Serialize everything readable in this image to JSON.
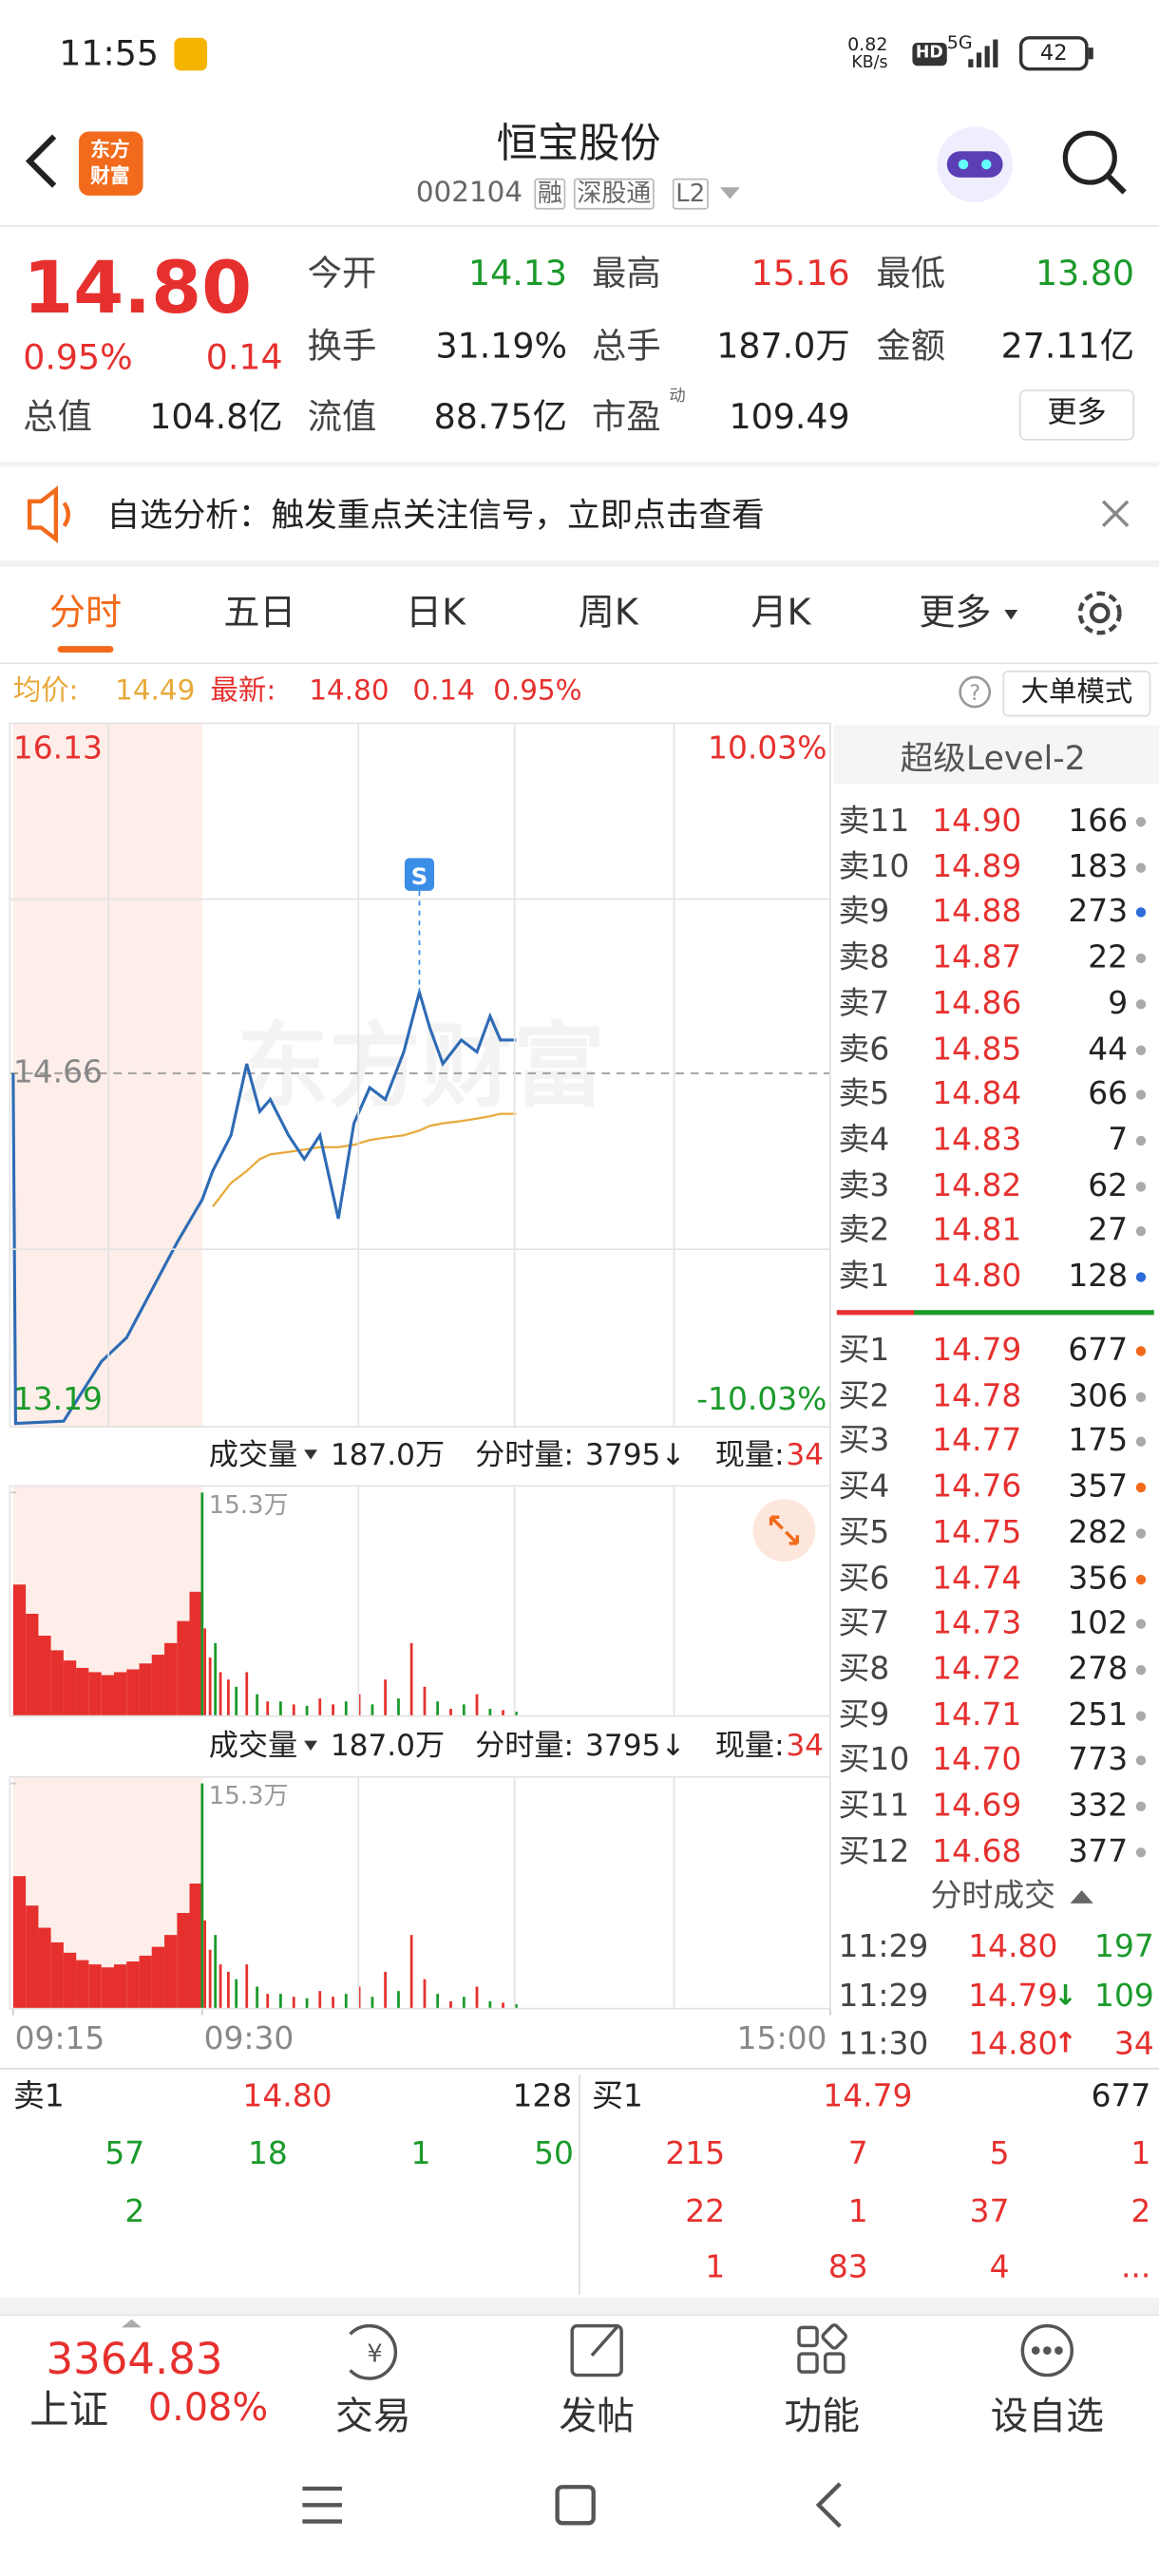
{
  "status": {
    "time": "11:55",
    "speed": "0.82",
    "speed_unit": "KB/s",
    "hd": "HD",
    "net": "5G",
    "battery": "42"
  },
  "header": {
    "logo_top": "东方",
    "logo_bottom": "财富",
    "title": "恒宝股份",
    "code": "002104",
    "tags": [
      "融",
      "深股通",
      "L2"
    ]
  },
  "quote": {
    "price": "14.80",
    "pct": "0.95%",
    "change": "0.14",
    "fields": [
      {
        "label": "今开",
        "value": "14.13",
        "color": "#1a9a2a"
      },
      {
        "label": "最高",
        "value": "15.16",
        "color": "#e6302e"
      },
      {
        "label": "最低",
        "value": "13.80",
        "color": "#1a9a2a"
      },
      {
        "label": "换手",
        "value": "31.19%",
        "color": "#222"
      },
      {
        "label": "总手",
        "value": "187.0万",
        "color": "#222"
      },
      {
        "label": "金额",
        "value": "27.11亿",
        "color": "#222"
      },
      {
        "label": "总值",
        "value": "104.8亿",
        "color": "#222"
      },
      {
        "label": "流值",
        "value": "88.75亿",
        "color": "#222"
      },
      {
        "label": "市盈",
        "value": "109.49",
        "color": "#222"
      }
    ],
    "pe_mark": "动",
    "more": "更多"
  },
  "banner": {
    "text": "自选分析：触发重点关注信号，立即点击查看"
  },
  "tabs": [
    "分时",
    "五日",
    "日K",
    "周K",
    "月K",
    "更多"
  ],
  "info": {
    "avg_label": "均价:",
    "avg": "14.49",
    "last_label": "最新:",
    "last": "14.80",
    "change": "0.14",
    "pct": "0.95%",
    "mode": "大单模式"
  },
  "chart_data": [
    {
      "type": "line",
      "x": [
        0,
        0.2,
        4,
        7,
        9,
        11,
        13,
        15,
        19,
        26,
        32,
        37,
        41,
        48,
        54,
        60,
        67,
        73,
        79,
        85,
        92,
        98,
        102,
        107,
        114,
        120,
        125,
        129,
        135
      ],
      "xlim": [
        0,
        255
      ],
      "series": [
        {
          "color": "#2e6bb5",
          "values": [
            14.66,
            13.19,
            13.2,
            13.45,
            13.55,
            13.75,
            13.95,
            14.13,
            14.25,
            14.4,
            14.7,
            14.5,
            14.55,
            14.4,
            14.3,
            14.4,
            14.05,
            14.45,
            14.6,
            14.55,
            14.75,
            15.0,
            14.85,
            14.7,
            14.8,
            14.75,
            14.9,
            14.8,
            14.8
          ]
        },
        {
          "color": "#e8a93a",
          "values": [
            null,
            null,
            null,
            null,
            null,
            null,
            null,
            null,
            14.1,
            14.2,
            14.25,
            14.3,
            14.32,
            14.33,
            14.34,
            14.35,
            14.35,
            14.36,
            14.38,
            14.39,
            14.4,
            14.42,
            14.44,
            14.45,
            14.46,
            14.47,
            14.48,
            14.49,
            14.49
          ]
        }
      ],
      "ylim": [
        13.19,
        16.13
      ],
      "yticks": [
        13.19,
        14.66,
        16.13
      ],
      "y2lim": [
        -10.03,
        10.03
      ],
      "y2ticks": [
        {
          "value": -10.03,
          "label": "-10.03%"
        },
        {
          "value": 10.03,
          "label": "10.03%"
        }
      ],
      "annotations": [
        {
          "text": "S",
          "x": 98
        }
      ],
      "watermark": "东方财富"
    },
    {
      "type": "bar",
      "label": "成交量",
      "total": "187.0万",
      "minute_label": "分时量:",
      "minute_value": "3795↓",
      "current_label": "现量:",
      "current_value": "34",
      "x": [
        0,
        1,
        2,
        3,
        4,
        5,
        6,
        7,
        8,
        9,
        10,
        11,
        12,
        13,
        14,
        15,
        16,
        18,
        20,
        22,
        25,
        28,
        32,
        36,
        40,
        45,
        50,
        55,
        60,
        65,
        70,
        75,
        80,
        85,
        90,
        95,
        100,
        105,
        110,
        115,
        120,
        125,
        130,
        135
      ],
      "values": [
        9,
        7,
        5.5,
        4.5,
        3.8,
        3.3,
        3,
        2.8,
        3,
        3.2,
        3.6,
        4.2,
        5,
        6.5,
        8.5,
        15.3,
        6,
        4,
        5,
        3,
        2.5,
        2,
        3,
        1.5,
        1,
        1,
        0.8,
        0.7,
        1.2,
        0.8,
        1,
        1.5,
        0.8,
        2.5,
        1.2,
        5,
        2,
        1,
        0.5,
        0.8,
        1.5,
        0.5,
        0.4,
        0.3
      ],
      "colors": [
        "#e6302e",
        "#e6302e",
        "#e6302e",
        "#e6302e",
        "#e6302e",
        "#e6302e",
        "#e6302e",
        "#e6302e",
        "#e6302e",
        "#e6302e",
        "#e6302e",
        "#e6302e",
        "#e6302e",
        "#e6302e",
        "#e6302e",
        "#1a9a2a",
        "#e6302e",
        "#e6302e",
        "#1a9a2a",
        "#e6302e",
        "#e6302e",
        "#1a9a2a",
        "#e6302e",
        "#1a9a2a",
        "#e6302e",
        "#1a9a2a",
        "#e6302e",
        "#1a9a2a",
        "#e6302e",
        "#e6302e",
        "#1a9a2a",
        "#e6302e",
        "#1a9a2a",
        "#e6302e",
        "#1a9a2a",
        "#e6302e",
        "#e6302e",
        "#1a9a2a",
        "#e6302e",
        "#1a9a2a",
        "#e6302e",
        "#1a9a2a",
        "#e6302e",
        "#1a9a2a"
      ],
      "xlim": [
        0,
        255
      ],
      "xticks": [
        {
          "value": 0,
          "label": "09:15"
        },
        {
          "value": 15,
          "label": "09:30"
        },
        {
          "value": 255,
          "label": "15:00"
        }
      ],
      "ylim": [
        0,
        15.3
      ],
      "yticks": [
        {
          "value": 15.3,
          "label": "15.3万"
        }
      ]
    }
  ],
  "level2": {
    "title": "超级Level-2",
    "asks": [
      {
        "label": "卖11",
        "price": "14.90",
        "volume": "166",
        "dot": "#aaa"
      },
      {
        "label": "卖10",
        "price": "14.89",
        "volume": "183",
        "dot": "#aaa"
      },
      {
        "label": "卖9",
        "price": "14.88",
        "volume": "273",
        "dot": "#2e6bd8"
      },
      {
        "label": "卖8",
        "price": "14.87",
        "volume": "22",
        "dot": "#aaa"
      },
      {
        "label": "卖7",
        "price": "14.86",
        "volume": "9",
        "dot": "#aaa"
      },
      {
        "label": "卖6",
        "price": "14.85",
        "volume": "44",
        "dot": "#aaa"
      },
      {
        "label": "卖5",
        "price": "14.84",
        "volume": "66",
        "dot": "#aaa"
      },
      {
        "label": "卖4",
        "price": "14.83",
        "volume": "7",
        "dot": "#aaa"
      },
      {
        "label": "卖3",
        "price": "14.82",
        "volume": "62",
        "dot": "#aaa"
      },
      {
        "label": "卖2",
        "price": "14.81",
        "volume": "27",
        "dot": "#aaa"
      },
      {
        "label": "卖1",
        "price": "14.80",
        "volume": "128",
        "dot": "#2e6bd8"
      }
    ],
    "bids": [
      {
        "label": "买1",
        "price": "14.79",
        "volume": "677",
        "dot": "#f26a1b"
      },
      {
        "label": "买2",
        "price": "14.78",
        "volume": "306",
        "dot": "#aaa"
      },
      {
        "label": "买3",
        "price": "14.77",
        "volume": "175",
        "dot": "#aaa"
      },
      {
        "label": "买4",
        "price": "14.76",
        "volume": "357",
        "dot": "#f26a1b"
      },
      {
        "label": "买5",
        "price": "14.75",
        "volume": "282",
        "dot": "#aaa"
      },
      {
        "label": "买6",
        "price": "14.74",
        "volume": "356",
        "dot": "#f26a1b"
      },
      {
        "label": "买7",
        "price": "14.73",
        "volume": "102",
        "dot": "#aaa"
      },
      {
        "label": "买8",
        "price": "14.72",
        "volume": "278",
        "dot": "#aaa"
      },
      {
        "label": "买9",
        "price": "14.71",
        "volume": "251",
        "dot": "#aaa"
      },
      {
        "label": "买10",
        "price": "14.70",
        "volume": "773",
        "dot": "#aaa"
      },
      {
        "label": "买11",
        "price": "14.69",
        "volume": "332",
        "dot": "#aaa"
      },
      {
        "label": "买12",
        "price": "14.68",
        "volume": "377",
        "dot": "#aaa"
      }
    ],
    "trades_title": "分时成交",
    "trades": [
      {
        "time": "11:29",
        "price": "14.80",
        "arrow": "",
        "volume": "197",
        "color": "#1a9a2a"
      },
      {
        "time": "11:29",
        "price": "14.79",
        "arrow": "↓",
        "volume": "109",
        "color": "#1a9a2a"
      },
      {
        "time": "11:30",
        "price": "14.80",
        "arrow": "↑",
        "volume": "34",
        "color": "#e6302e"
      }
    ]
  },
  "queue": {
    "ask": {
      "label": "卖1",
      "price": "14.80",
      "volume": "128",
      "orders": [
        "57",
        "18",
        "1",
        "50",
        "2"
      ]
    },
    "bid": {
      "label": "买1",
      "price": "14.79",
      "volume": "677",
      "orders": [
        "215",
        "7",
        "5",
        "1",
        "22",
        "1",
        "37",
        "2",
        "1",
        "83",
        "4",
        "..."
      ]
    }
  },
  "bottom": {
    "index_value": "3364.83",
    "index_name": "上证",
    "index_pct": "0.08%",
    "items": [
      "交易",
      "发帖",
      "功能",
      "设自选"
    ]
  }
}
